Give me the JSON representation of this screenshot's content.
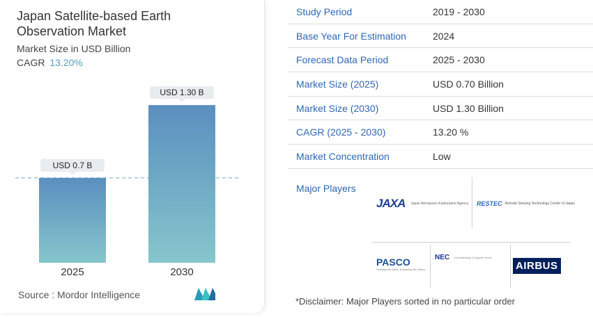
{
  "chart": {
    "title": "Japan Satellite-based Earth Observation Market",
    "subtitle": "Market Size in USD Billion",
    "cagr_label": "CAGR",
    "cagr_value": "13.20%",
    "source": "Source :  Mordor Intelligence"
  },
  "chart_data": {
    "type": "bar",
    "title": "Japan Satellite-based Earth Observation Market",
    "subtitle": "Market Size in USD Billion",
    "categories": [
      "2025",
      "2030"
    ],
    "values": [
      0.7,
      1.3
    ],
    "data_labels": [
      "USD 0.7 B",
      "USD 1.30 B"
    ],
    "ylim": [
      0,
      1.45
    ],
    "reference_line": 0.7,
    "bar_color_top": "#5b8fbf",
    "bar_color_bottom": "#86c6cc",
    "grid": false,
    "legend": "none"
  },
  "info": {
    "rows": [
      {
        "label": "Study Period",
        "value": "2019 - 2030"
      },
      {
        "label": "Base Year For Estimation",
        "value": "2024"
      },
      {
        "label": "Forecast Data Period",
        "value": "2025 - 2030"
      },
      {
        "label": "Market Size (2025)",
        "value": "USD 0.70 Billion"
      },
      {
        "label": "Market Size (2030)",
        "value": "USD 1.30 Billion"
      },
      {
        "label": "CAGR (2025 - 2030)",
        "value": "13.20 %"
      },
      {
        "label": "Market Concentration",
        "value": "Low"
      }
    ]
  },
  "players": {
    "title": "Major Players",
    "jaxa": {
      "mark": "JAXA",
      "text": "Japan Aerospace Exploration Agency"
    },
    "restec": {
      "mark": "RESTEC",
      "text": "Remote Sensing Technology Center of Japan"
    },
    "pasco": {
      "mark": "PASCO",
      "sub": "Sensing the Earth, Exploring the Future"
    },
    "nec": {
      "mark": "NEC",
      "text": "\\Orchestrating a brighter world"
    },
    "airbus": {
      "mark": "AIRBUS"
    }
  },
  "disclaimer": "*Disclaimer: Major Players sorted in no particular order",
  "colors": {
    "accent_blue": "#2e66b5",
    "cagr_blue": "#5b9bc4",
    "label_bg": "#e8ecef"
  }
}
